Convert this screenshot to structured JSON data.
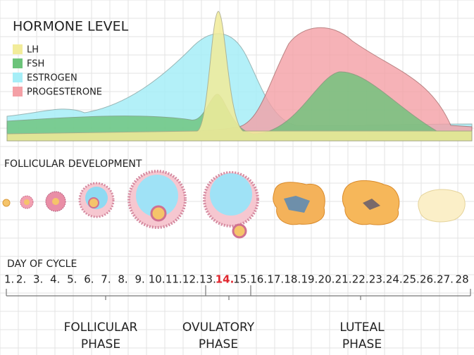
{
  "title": "HORMONE LEVEL",
  "legend": [
    {
      "name": "LH",
      "color": "#f2ec9a"
    },
    {
      "name": "FSH",
      "color": "#6cc47a"
    },
    {
      "name": "ESTROGEN",
      "color": "#a6eef7"
    },
    {
      "name": "PROGESTERONE",
      "color": "#f4a0a6"
    }
  ],
  "follicular_title": "FOLLICULAR DEVELOPMENT",
  "cycle_title": "DAY OF CYCLE",
  "days": [
    "1.",
    "2.",
    "3.",
    "4.",
    "5.",
    "6.",
    "7.",
    "8.",
    "9.",
    "10.",
    "11.",
    "12.",
    "13.",
    "14.",
    "15.",
    "16.",
    "17.",
    "18.",
    "19.",
    "20.",
    "21.",
    "22.",
    "23.",
    "24.",
    "25.",
    "26.",
    "27.",
    "28"
  ],
  "highlight_color": "#e0262e",
  "phases": [
    {
      "lines": [
        "FOLLICULAR",
        "PHASE"
      ]
    },
    {
      "lines": [
        "OVULATORY",
        "PHASE"
      ]
    },
    {
      "lines": [
        "LUTEAL",
        "PHASE"
      ]
    }
  ]
}
